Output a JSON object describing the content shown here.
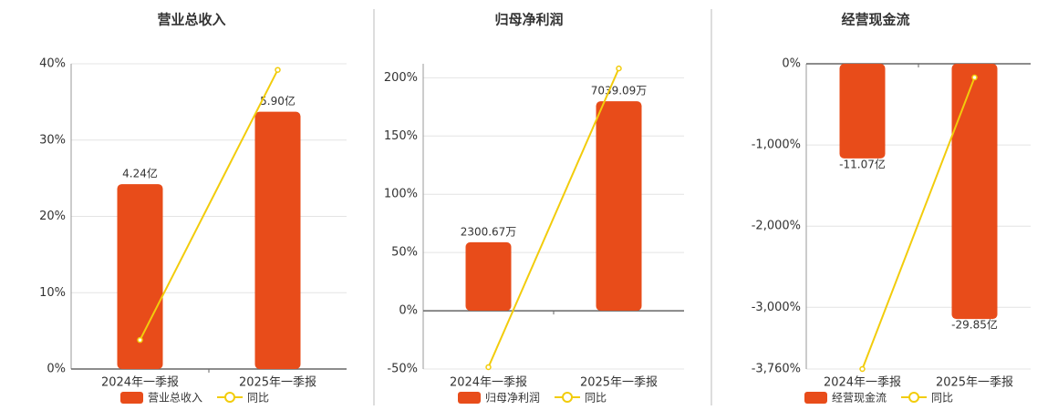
{
  "chart_data": [
    {
      "type": "bar",
      "title": "营业总收入",
      "categories": [
        "2024年一季报",
        "2025年一季报"
      ],
      "series": [
        {
          "name": "营业总收入",
          "color": "#e84c1a",
          "axis": "y2",
          "values": [
            4.24,
            5.9
          ],
          "value_labels": [
            "4.24亿",
            "5.90亿"
          ]
        },
        {
          "name": "同比",
          "color": "#f2cc0c",
          "type": "line",
          "values": [
            3.8,
            39.2
          ]
        }
      ],
      "ylim": [
        0,
        40
      ],
      "yticks": [
        {
          "value": 0,
          "label": "0%"
        },
        {
          "value": 10,
          "label": "10%"
        },
        {
          "value": 20,
          "label": "20%"
        },
        {
          "value": 30,
          "label": "30%"
        },
        {
          "value": 40,
          "label": "40%"
        }
      ],
      "y2lim": [
        0,
        7
      ],
      "grid": true,
      "legend": "bottom"
    },
    {
      "type": "bar",
      "title": "归母净利润",
      "categories": [
        "2024年一季报",
        "2025年一季报"
      ],
      "series": [
        {
          "name": "归母净利润",
          "color": "#e84c1a",
          "axis": "y2",
          "values": [
            2300.67,
            7039.09
          ],
          "value_labels": [
            "2300.67万",
            "7039.09万"
          ]
        },
        {
          "name": "同比",
          "color": "#f2cc0c",
          "type": "line",
          "values": [
            -48.4,
            208
          ]
        }
      ],
      "ylim": [
        -50,
        212
      ],
      "yticks": [
        {
          "value": -50,
          "label": "-50%"
        },
        {
          "value": 0,
          "label": "0%"
        },
        {
          "value": 50,
          "label": "50%"
        },
        {
          "value": 100,
          "label": "100%"
        },
        {
          "value": 150,
          "label": "150%"
        },
        {
          "value": 200,
          "label": "200%"
        }
      ],
      "y2lim": [
        -1960,
        8300
      ],
      "grid": true,
      "legend": "bottom"
    },
    {
      "type": "bar",
      "title": "经营现金流",
      "categories": [
        "2024年一季报",
        "2025年一季报"
      ],
      "series": [
        {
          "name": "经营现金流",
          "color": "#e84c1a",
          "axis": "y2",
          "values": [
            -11.07,
            -29.85
          ],
          "value_labels": [
            "-11.07亿",
            "-29.85亿"
          ]
        },
        {
          "name": "同比",
          "color": "#f2cc0c",
          "type": "line",
          "values": [
            -3760,
            -169
          ]
        }
      ],
      "ylim": [
        -3760,
        0
      ],
      "yticks": [
        {
          "value": 0,
          "label": "0%"
        },
        {
          "value": -1000,
          "label": "-1,000%"
        },
        {
          "value": -2000,
          "label": "-2,000%"
        },
        {
          "value": -3000,
          "label": "-3,000%"
        },
        {
          "value": -3760,
          "label": "-3,760%"
        }
      ],
      "y2lim": [
        -35.7,
        0
      ],
      "grid": true,
      "legend": "bottom"
    }
  ]
}
